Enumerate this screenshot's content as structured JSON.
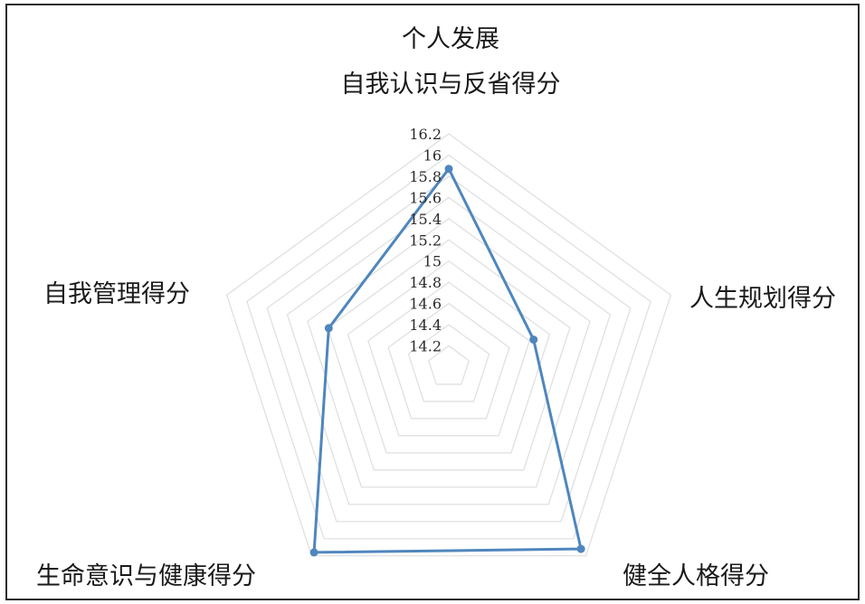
{
  "chart_data": {
    "type": "radar",
    "axes": [
      {
        "label_lines": [
          "个人发展",
          "自我认识与反省得分"
        ]
      },
      {
        "label_lines": [
          "人生规划得分"
        ]
      },
      {
        "label_lines": [
          "健全人格得分"
        ]
      },
      {
        "label_lines": [
          "生命意识与健康得分"
        ]
      },
      {
        "label_lines": [
          "自我管理得分"
        ]
      }
    ],
    "tick_labels": [
      "14.2",
      "14.4",
      "14.6",
      "14.8",
      "15",
      "15.2",
      "15.4",
      "15.6",
      "15.8",
      "16",
      "16.2"
    ],
    "range": [
      14.0,
      16.2
    ],
    "series": [
      {
        "values": [
          15.87,
          14.84,
          16.12,
          16.16,
          15.19
        ]
      }
    ],
    "legend": false,
    "grid": true
  },
  "colors": {
    "series_line": "#4f86bd",
    "grid": "#dedede",
    "frame": "#2b2b2b"
  }
}
